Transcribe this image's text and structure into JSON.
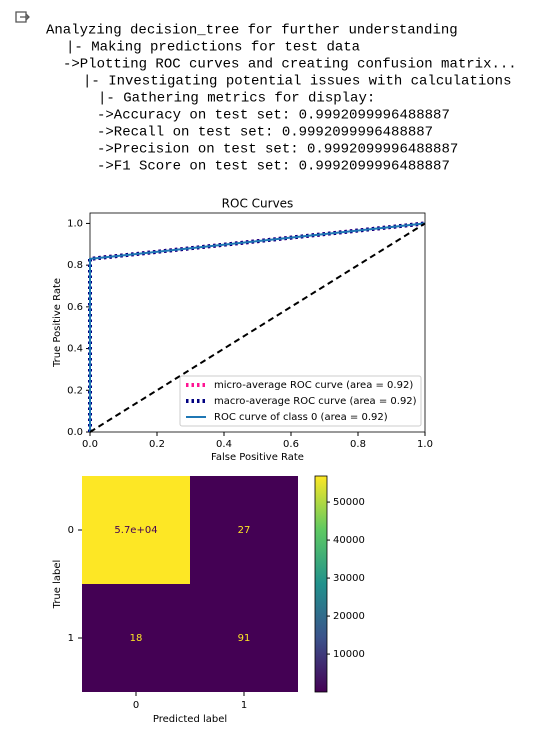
{
  "output_lines": [
    "Analyzing decision_tree for further understanding",
    "|- Making predictions for test data",
    "->Plotting ROC curves and creating confusion matrix...",
    "|- Investigating potential issues with calculations",
    "|- Gathering metrics for display:",
    "->Accuracy on test set: 0.9992099996488887",
    "->Recall on test set: 0.9992099996488887",
    "->Precision on test set: 0.9992099996488887",
    "->F1 Score on test set: 0.9992099996488887"
  ],
  "chart_data": [
    {
      "type": "line",
      "title": "ROC Curves",
      "x_label": "False Positive Rate",
      "y_label": "True Positive Rate",
      "xlim": [
        0,
        1
      ],
      "ylim": [
        0,
        1.05
      ],
      "xticks": [
        {
          "value": 0,
          "label": "0.0"
        },
        {
          "value": 0.2,
          "label": "0.2"
        },
        {
          "value": 0.4,
          "label": "0.4"
        },
        {
          "value": 0.6,
          "label": "0.6"
        },
        {
          "value": 0.8,
          "label": "0.8"
        },
        {
          "value": 1,
          "label": "1.0"
        }
      ],
      "yticks": [
        {
          "value": 0,
          "label": "0.0"
        },
        {
          "value": 0.2,
          "label": "0.2"
        },
        {
          "value": 0.4,
          "label": "0.4"
        },
        {
          "value": 0.6,
          "label": "0.6"
        },
        {
          "value": 0.8,
          "label": "0.8"
        },
        {
          "value": 1,
          "label": "1.0"
        }
      ],
      "legend": "lower right",
      "series": [
        {
          "name": "micro-average ROC curve (area = 0.92)",
          "color": "#ff1493",
          "style": "dotted",
          "x": [
            0,
            0,
            1
          ],
          "values": [
            0,
            0.83,
            1
          ]
        },
        {
          "name": "macro-average ROC curve (area = 0.92)",
          "color": "#000080",
          "style": "dotted",
          "x": [
            0,
            0,
            1
          ],
          "values": [
            0,
            0.83,
            1
          ]
        },
        {
          "name": "ROC curve of class 0 (area = 0.92)",
          "color": "#1f77b4",
          "style": "solid",
          "x": [
            0,
            0,
            1
          ],
          "values": [
            0,
            0.83,
            1
          ]
        }
      ],
      "reference": {
        "color": "#000000",
        "style": "dashed",
        "x": [
          0,
          1
        ],
        "values": [
          0,
          1
        ]
      }
    },
    {
      "type": "heatmap",
      "x_label": "Predicted label",
      "y_label": "True label",
      "x_categories": [
        "0",
        "1"
      ],
      "y_categories": [
        "0",
        "1"
      ],
      "values": [
        [
          56860,
          27
        ],
        [
          18,
          91
        ]
      ],
      "value_labels": [
        [
          "5.7e+04",
          "27"
        ],
        [
          "18",
          "91"
        ]
      ],
      "colormap": "viridis",
      "colorbar": {
        "lim": [
          18,
          56860
        ],
        "ticks": [
          10000,
          20000,
          30000,
          40000,
          50000
        ]
      }
    }
  ]
}
